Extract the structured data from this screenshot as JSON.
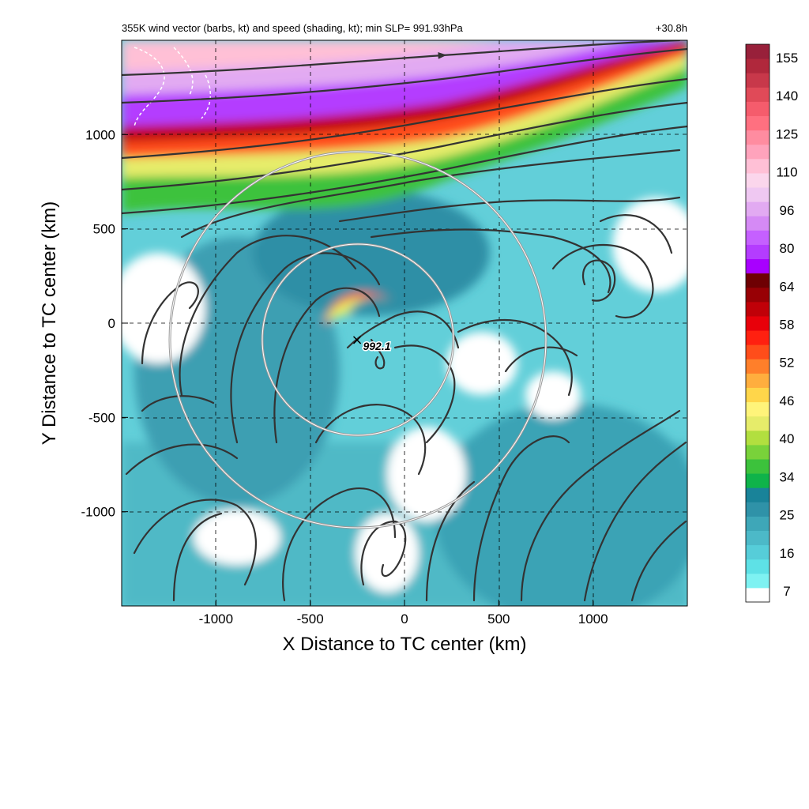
{
  "chart_data": {
    "type": "heatmap",
    "title": "355K wind vector (barbs, kt) and speed (shading, kt); min SLP= 991.93hPa",
    "time_label": "+30.8h",
    "xlabel": "X Distance to TC center (km)",
    "ylabel": "Y Distance to TC center (km)",
    "xlim": [
      -1500,
      1500
    ],
    "ylim": [
      -1500,
      1500
    ],
    "x_ticks": [
      -1000,
      -500,
      0,
      500,
      1000
    ],
    "y_ticks": [
      1000,
      500,
      0,
      -500,
      -1000
    ],
    "grid": "dashed",
    "center_marker": {
      "symbol": "×",
      "x": -260,
      "y": -80,
      "label": "992.1"
    },
    "range_rings_km": [
      500,
      1000
    ],
    "colorbar": {
      "levels": [
        7,
        16,
        25,
        34,
        40,
        46,
        52,
        58,
        64,
        80,
        96,
        110,
        125,
        140,
        155
      ],
      "colors": [
        "#ffffff",
        "#7ef2f2",
        "#5ee1e6",
        "#56cdd9",
        "#4cb9c8",
        "#3ea7b8",
        "#2f92a8",
        "#198399",
        "#0fb34a",
        "#3cc23c",
        "#79d23a",
        "#b2df3f",
        "#e6ec6a",
        "#fff47a",
        "#ffd64a",
        "#ffae3e",
        "#ff7f2a",
        "#ff4d1a",
        "#ff2010",
        "#e8000a",
        "#c00008",
        "#980005",
        "#6e0003",
        "#a800ff",
        "#b43cff",
        "#c560ff",
        "#d58af5",
        "#e2aaf2",
        "#efc8f2",
        "#fbd6ec",
        "#ffc0d6",
        "#ffa3bc",
        "#ff8ca0",
        "#ff7080",
        "#f55c6c",
        "#e04a58",
        "#c8384a",
        "#b0283c",
        "#98203a"
      ]
    },
    "streamline_color": "#333333"
  }
}
